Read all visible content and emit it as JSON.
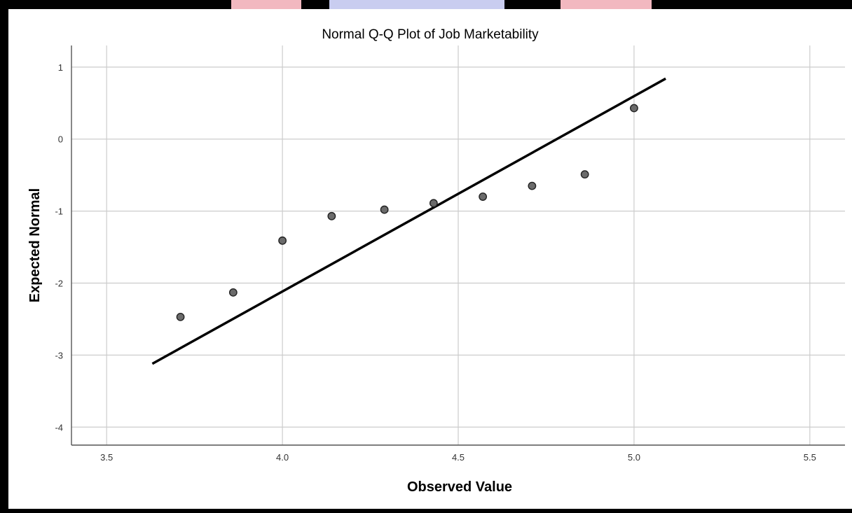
{
  "colors": {
    "background": "#ffffff",
    "frame": "#000000",
    "grid": "#cccccc",
    "axis": "#555555",
    "point_fill": "#6b6b6b",
    "point_stroke": "#222222",
    "reference_line": "#000000",
    "decor_red": "#f2b8c0",
    "decor_blue": "#c9cdf0"
  },
  "chart_data": {
    "type": "scatter",
    "title": "Normal Q-Q Plot of Job Marketability",
    "xlabel": "Observed Value",
    "ylabel": "Expected Normal",
    "xlim": [
      3.4,
      5.6
    ],
    "ylim": [
      -4.25,
      1.3
    ],
    "xticks": [
      3.5,
      4.0,
      4.5,
      5.0,
      5.5
    ],
    "xtick_labels": [
      "3.5",
      "4.0",
      "4.5",
      "5.0",
      "5.5"
    ],
    "yticks": [
      1,
      0,
      -1,
      -2,
      -3,
      -4
    ],
    "ytick_labels": [
      "1",
      "0",
      "-1",
      "-2",
      "-3",
      "-4"
    ],
    "grid": true,
    "legend": "none",
    "series": [
      {
        "kind": "points",
        "x": [
          3.71,
          3.86,
          4.0,
          4.14,
          4.29,
          4.43,
          4.57,
          4.71,
          4.86,
          5.0
        ],
        "y": [
          -2.47,
          -2.13,
          -1.41,
          -1.07,
          -0.98,
          -0.89,
          -0.8,
          -0.65,
          -0.49,
          0.43
        ]
      },
      {
        "kind": "reference-line",
        "x": [
          3.63,
          5.09
        ],
        "y": [
          -3.12,
          0.84
        ]
      }
    ]
  }
}
